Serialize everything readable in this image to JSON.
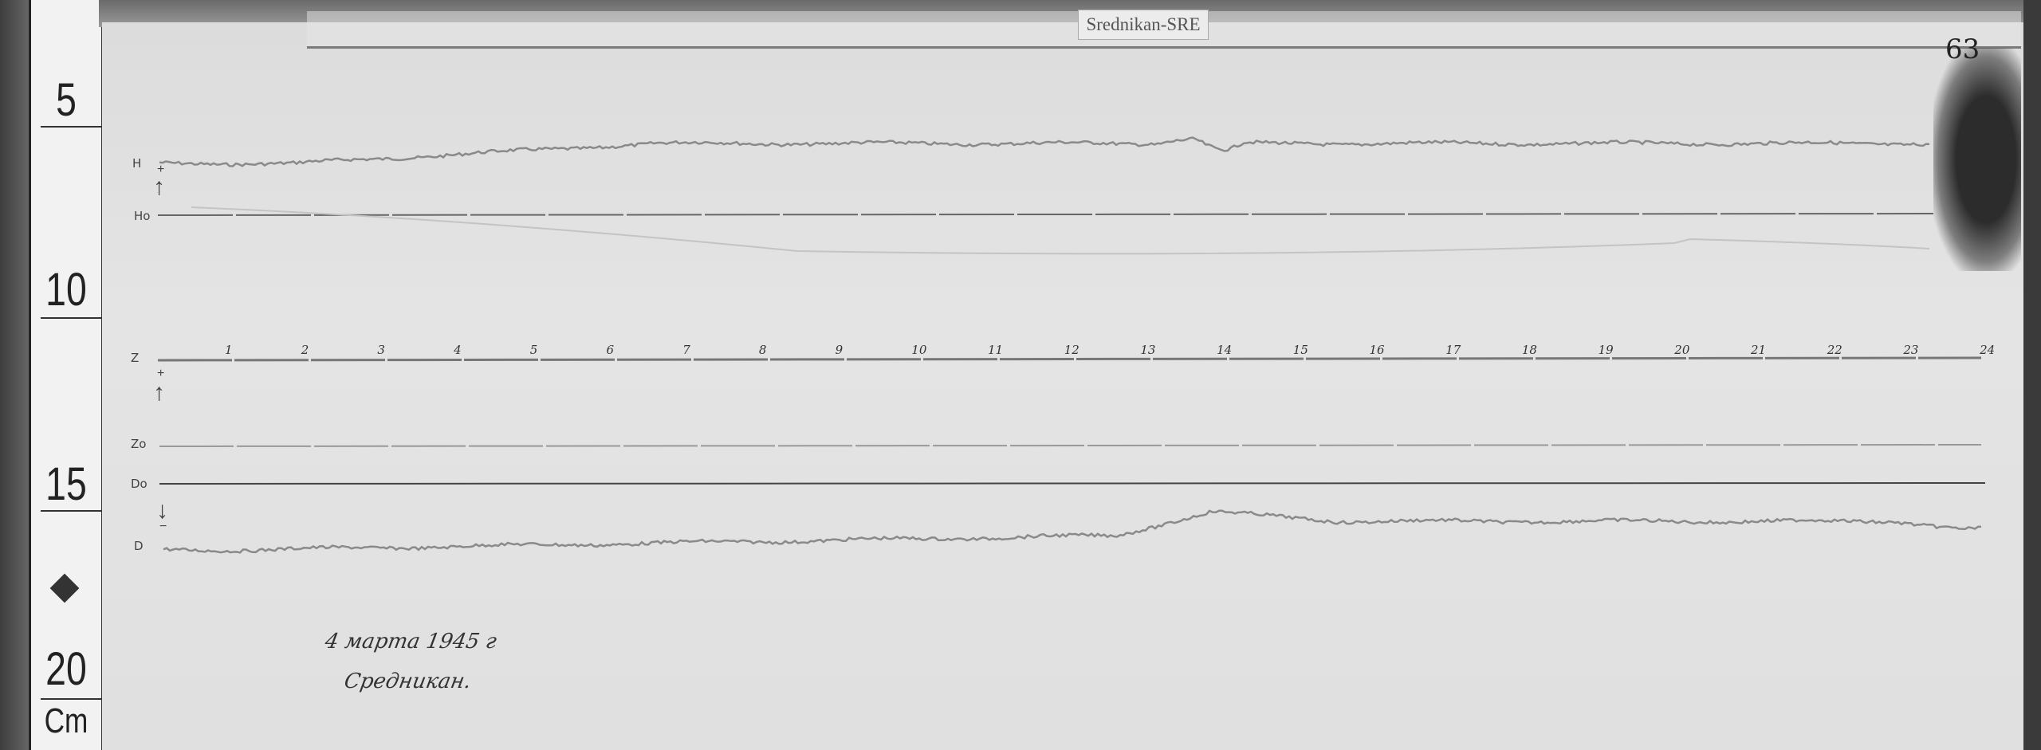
{
  "label_tag": "Srednikan-SRE",
  "sheet_number": "63",
  "ruler": {
    "marks": [
      "5",
      "10",
      "15",
      "20"
    ],
    "unit": "Cm"
  },
  "traces": {
    "h": "H",
    "h0": "Ho",
    "z": "Z",
    "z0": "Zo",
    "d0": "Do",
    "d": "D",
    "h_sign": "+",
    "z_sign": "+",
    "d_sign": "−"
  },
  "hours": [
    "1",
    "2",
    "3",
    "4",
    "5",
    "6",
    "7",
    "8",
    "9",
    "10",
    "11",
    "12",
    "13",
    "14",
    "15",
    "16",
    "17",
    "18",
    "19",
    "20",
    "21",
    "22",
    "23",
    "24"
  ],
  "handwriting": {
    "date": "4 марта 1945 г",
    "station": "Средникан."
  },
  "colors": {
    "paper": "#e0e0e0",
    "trace": "#888888",
    "baseline": "#555555"
  }
}
